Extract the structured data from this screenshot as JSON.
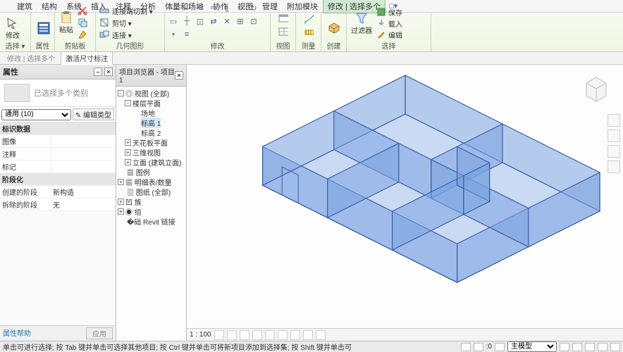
{
  "menubar": {
    "tabs": [
      "建筑",
      "结构",
      "系统",
      "插入",
      "注释",
      "分析",
      "体量和场地",
      "协作",
      "视图",
      "管理",
      "附加模块",
      "修改 | 选择多个"
    ],
    "active_index": 11,
    "help_glyph": "□▾"
  },
  "ribbon": {
    "groups": [
      {
        "label": "选择 ▾",
        "big": {
          "text": "修改"
        }
      },
      {
        "label": "属性",
        "big": {
          "text": ""
        }
      },
      {
        "label": "剪贴板",
        "rows": [
          [
            "粘贴"
          ],
          [
            "连接端切割 ▾",
            "剪切 ▾",
            "连接 ▾"
          ]
        ]
      },
      {
        "label": "几何图形"
      },
      {
        "label": "修改"
      },
      {
        "label": "视图"
      },
      {
        "label": "测量"
      },
      {
        "label": "创建"
      },
      {
        "label": "选择",
        "items": [
          "过滤器",
          "保存",
          "载入",
          "编辑"
        ]
      }
    ]
  },
  "subribbon": {
    "tabs": [
      "修改 | 选择多个",
      "激活尺寸标注"
    ],
    "active": 1
  },
  "props": {
    "title": "属性",
    "type_placeholder": "已选择多个类别",
    "selector_value": "通用 (10)",
    "edit_type": "✎ 编辑类型",
    "groups": [
      {
        "header": "标识数据",
        "rows": [
          [
            "图像",
            ""
          ],
          [
            "注释",
            ""
          ],
          [
            "标记",
            ""
          ]
        ]
      },
      {
        "header": "阶段化",
        "rows": [
          [
            "创建的阶段",
            "新构造"
          ],
          [
            "拆除的阶段",
            "无"
          ]
        ]
      }
    ],
    "help": "属性帮助",
    "apply": "应用"
  },
  "browser": {
    "title": "项目浏览器 - 项目1",
    "tree": [
      {
        "exp": "-",
        "depth": 0,
        "label": "◎ 视图 (全部)"
      },
      {
        "exp": "-",
        "depth": 1,
        "label": "楼层平面"
      },
      {
        "exp": "",
        "depth": 2,
        "label": "场地"
      },
      {
        "exp": "",
        "depth": 2,
        "label": "标高 1",
        "sel": true
      },
      {
        "exp": "",
        "depth": 2,
        "label": "标高 2"
      },
      {
        "exp": "+",
        "depth": 1,
        "label": "天花板平面"
      },
      {
        "exp": "+",
        "depth": 1,
        "label": "三维视图"
      },
      {
        "exp": "+",
        "depth": 1,
        "label": "立面 (建筑立面)"
      },
      {
        "exp": "",
        "depth": 0,
        "label": "▦ 图例"
      },
      {
        "exp": "+",
        "depth": 0,
        "label": "▦ 明细表/数量"
      },
      {
        "exp": "",
        "depth": 0,
        "label": "▥ 图纸 (全部)"
      },
      {
        "exp": "+",
        "depth": 0,
        "label": "凹 族"
      },
      {
        "exp": "+",
        "depth": 0,
        "label": "◉ 组"
      },
      {
        "exp": "",
        "depth": 0,
        "label": "�础 Revit 链接"
      }
    ]
  },
  "canvas": {
    "scale": "1 : 100",
    "model": {
      "fill": "#7aa3e0",
      "fill_opacity": 0.55,
      "stroke": "#3a5fa8",
      "stroke_width": 1.2,
      "floor_fill": "#8eb0e6",
      "floor_opacity": 0.45
    }
  },
  "status": {
    "hint": "单击可进行选择; 按 Tab 键并单击可选择其他项目; 按 Ctrl 键并单击可将新项目添加到选择集; 按 Shift 键并单击可",
    "count": ":0",
    "viewmode": "主模型"
  }
}
